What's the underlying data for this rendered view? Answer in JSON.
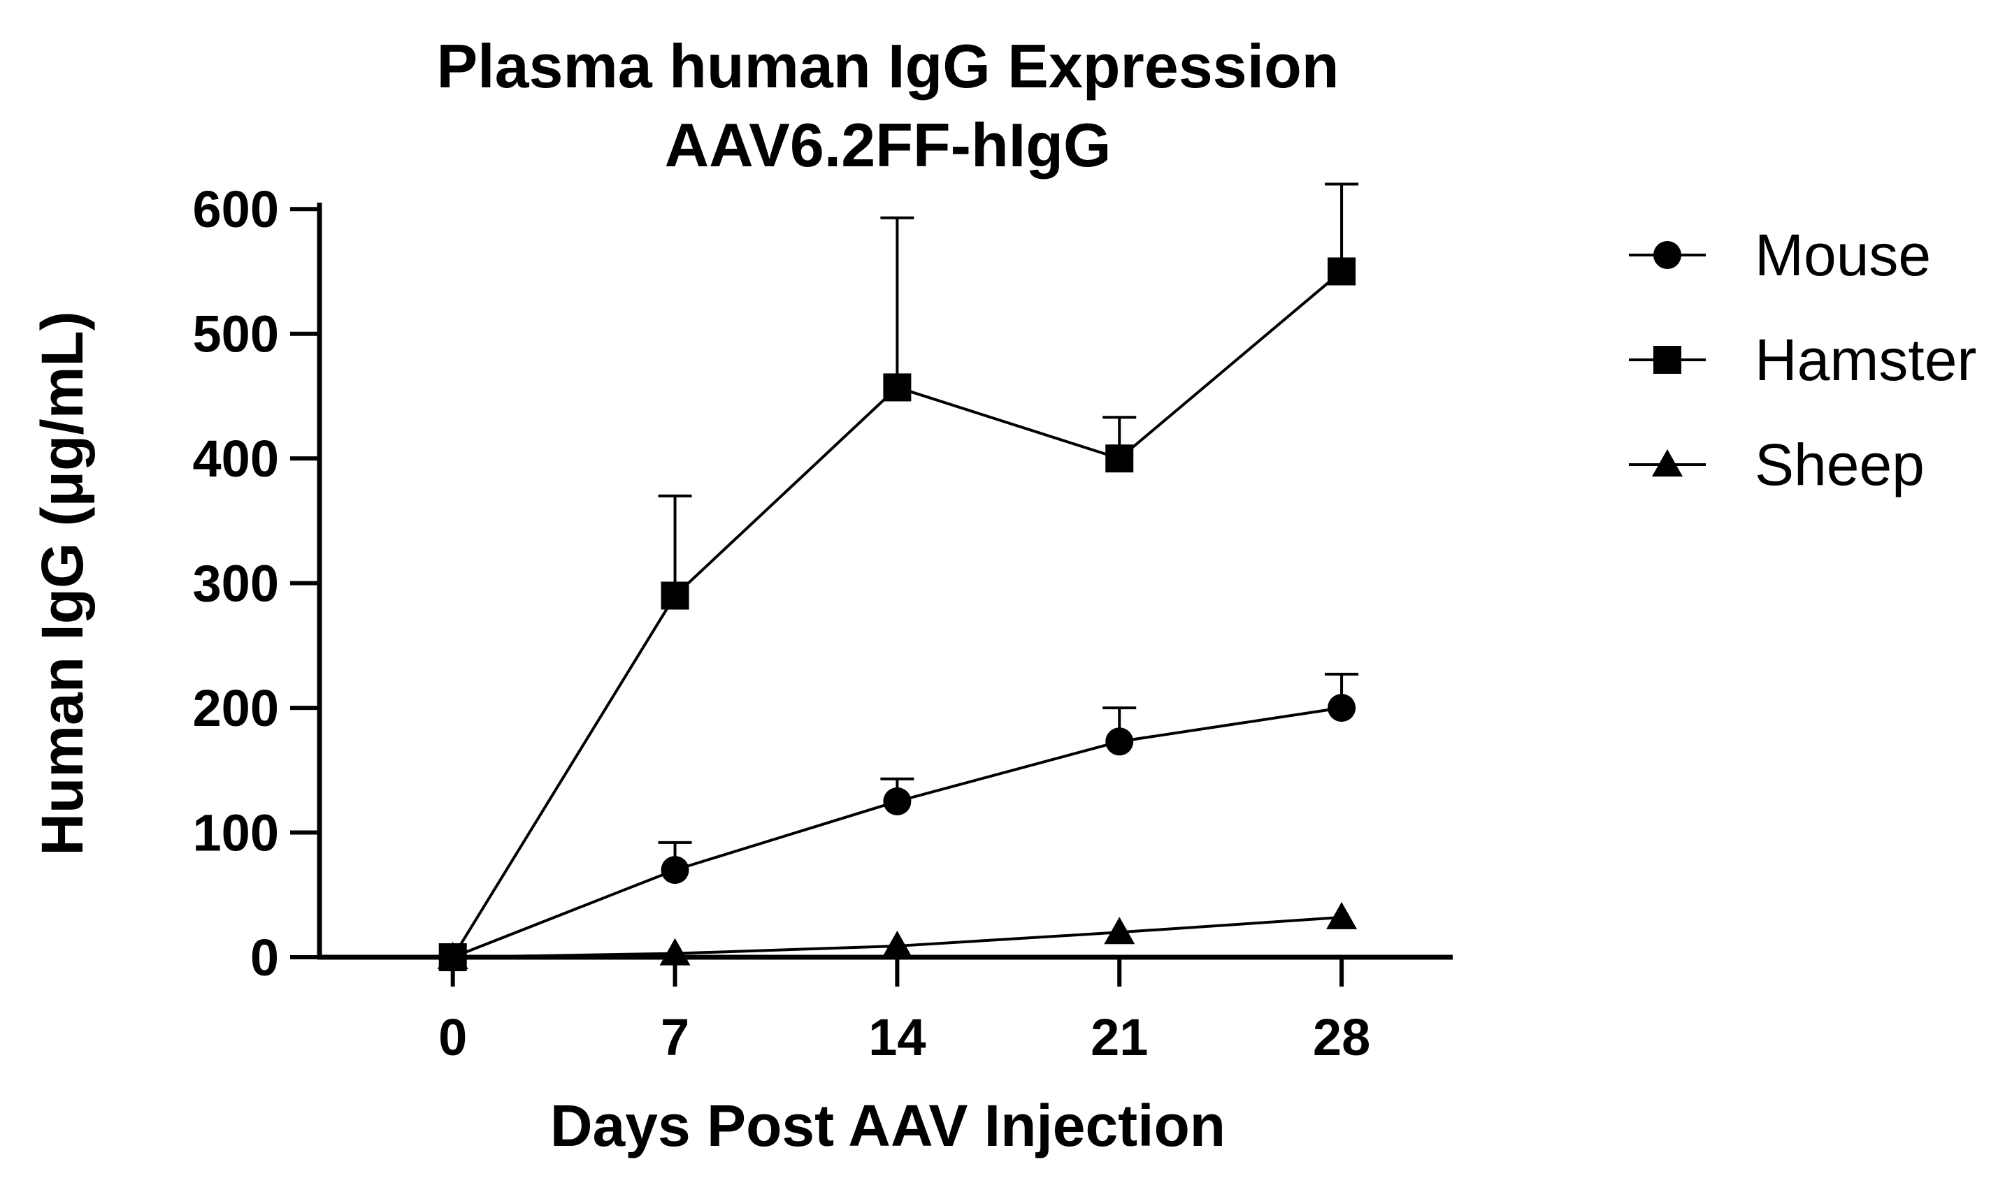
{
  "chart_data": {
    "type": "line",
    "title": [
      "Plasma human IgG Expression",
      "AAV6.2FF-hIgG"
    ],
    "xlabel": "Days Post AAV Injection",
    "ylabel": "Human IgG (μg/mL)",
    "x": [
      0,
      7,
      14,
      21,
      28
    ],
    "x_tick_labels": [
      "0",
      "7",
      "14",
      "21",
      "28"
    ],
    "xlim": [
      -4.2,
      31.5
    ],
    "ylim": [
      0,
      650
    ],
    "y_ticks": [
      0,
      100,
      200,
      300,
      400,
      500,
      600
    ],
    "y_tick_labels": [
      "0",
      "100",
      "200",
      "300",
      "400",
      "500",
      "600"
    ],
    "grid": false,
    "legend_position": "right",
    "error_bars": "upper only",
    "series": [
      {
        "name": "Mouse",
        "marker": "circle",
        "values": [
          0,
          70,
          125,
          173,
          200
        ],
        "error_upper": [
          0,
          92,
          143,
          200,
          227
        ]
      },
      {
        "name": "Hamster",
        "marker": "square",
        "values": [
          0,
          290,
          457,
          400,
          550
        ],
        "error_upper": [
          0,
          370,
          593,
          433,
          620
        ]
      },
      {
        "name": "Sheep",
        "marker": "triangle",
        "values": [
          0,
          3,
          9,
          20,
          32
        ],
        "error_upper": [
          0,
          3,
          9,
          20,
          32
        ]
      }
    ],
    "colors": {
      "line": "#000000",
      "marker": "#000000",
      "background": "#ffffff"
    }
  }
}
